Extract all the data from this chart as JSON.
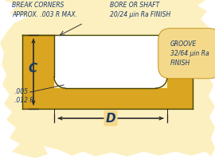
{
  "bg_color": "#ffffff",
  "gold_very_light": "#fdf0c0",
  "gold_light": "#f5d98a",
  "gold_mid": "#daa520",
  "gold_dark": "#b8860b",
  "outline_color": "#555500",
  "text_color": "#1a3a6b",
  "dim_color": "#222222",
  "label_C": "C",
  "label_D": "D",
  "text_break_corners": "BREAK CORNERS\nAPPROX. .003 R MAX.",
  "text_bore": "BORE OR SHAFT\n20/24 μin Ra FINISH",
  "text_groove": "GROOVE\n32/64 μin Ra\nFINISH",
  "text_radius": ".005 -\n.012 R",
  "figsize": [
    2.7,
    1.99
  ],
  "dpi": 100
}
